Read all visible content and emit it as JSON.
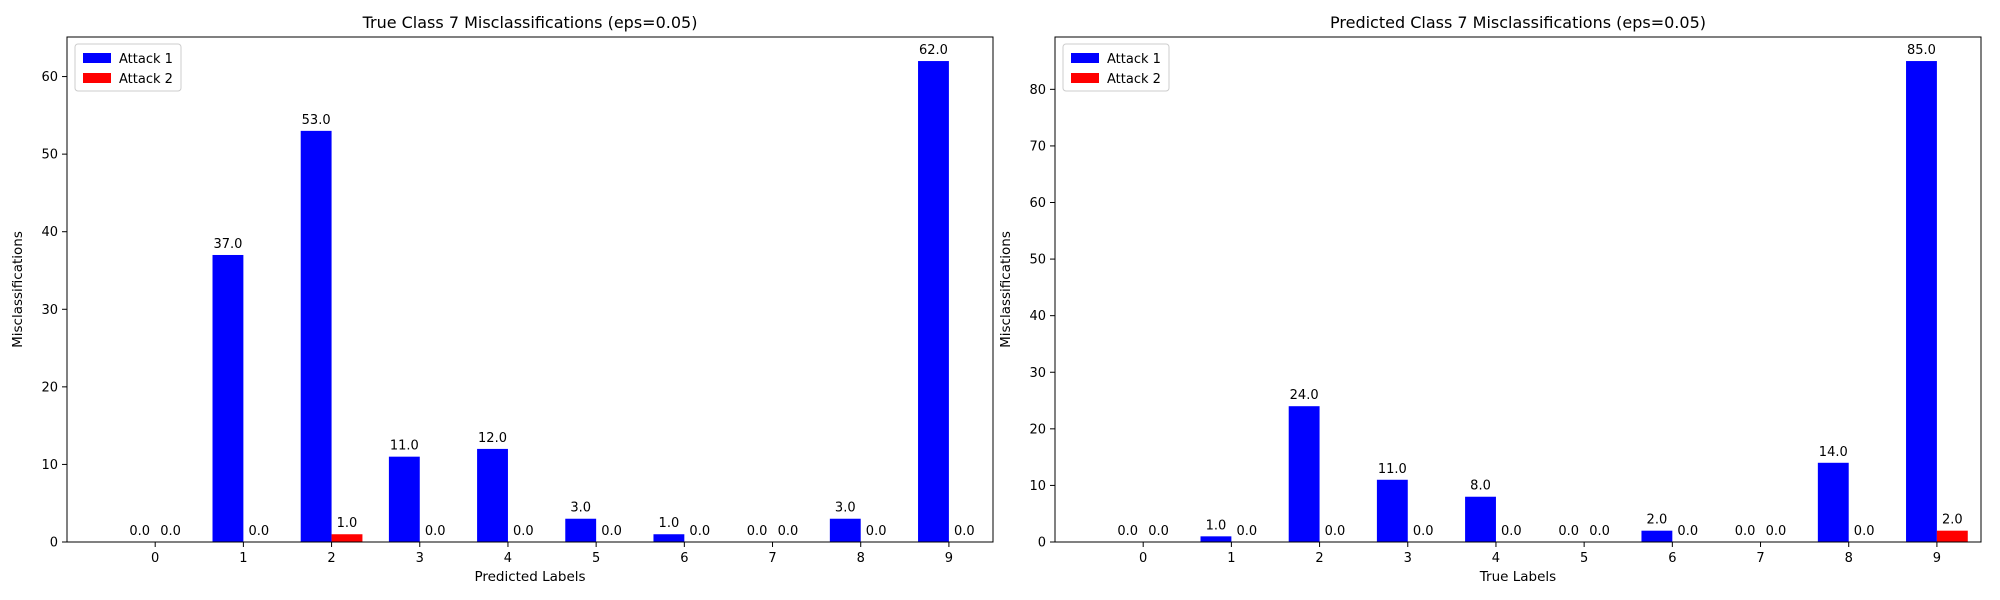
{
  "chart_data": [
    {
      "type": "bar",
      "title": "True Class 7 Misclassifications (eps=0.05)",
      "xlabel": "Predicted Labels",
      "ylabel": "Misclassifications",
      "categories": [
        "0",
        "1",
        "2",
        "3",
        "4",
        "5",
        "6",
        "7",
        "8",
        "9"
      ],
      "series": [
        {
          "name": "Attack 1",
          "color": "#0000ff",
          "values": [
            0,
            37,
            53,
            11,
            12,
            3,
            1,
            0,
            3,
            62
          ]
        },
        {
          "name": "Attack 2",
          "color": "#ff0000",
          "values": [
            0,
            0,
            1,
            0,
            0,
            0,
            0,
            0,
            0,
            0
          ]
        }
      ],
      "ylim": [
        0,
        65.1
      ],
      "yticks": [
        0,
        10,
        20,
        30,
        40,
        50,
        60
      ],
      "grid": false,
      "legend": "upper-left",
      "value_labels": true
    },
    {
      "type": "bar",
      "title": "Predicted Class 7 Misclassifications (eps=0.05)",
      "xlabel": "True Labels",
      "ylabel": "Misclassifications",
      "categories": [
        "0",
        "1",
        "2",
        "3",
        "4",
        "5",
        "6",
        "7",
        "8",
        "9"
      ],
      "series": [
        {
          "name": "Attack 1",
          "color": "#0000ff",
          "values": [
            0,
            1,
            24,
            11,
            8,
            0,
            2,
            0,
            14,
            85
          ]
        },
        {
          "name": "Attack 2",
          "color": "#ff0000",
          "values": [
            0,
            0,
            0,
            0,
            0,
            0,
            0,
            0,
            0,
            2
          ]
        }
      ],
      "ylim": [
        0,
        89.25
      ],
      "yticks": [
        0,
        10,
        20,
        30,
        40,
        50,
        60,
        70,
        80
      ],
      "grid": false,
      "legend": "upper-left",
      "value_labels": true
    }
  ]
}
